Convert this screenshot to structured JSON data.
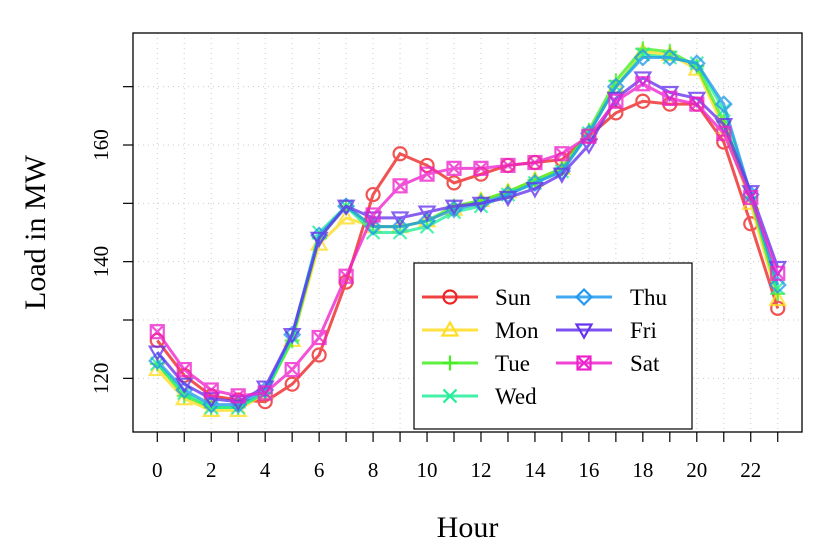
{
  "chart_data": {
    "type": "line",
    "title": "",
    "xlabel": "Hour",
    "ylabel": "Load in MW",
    "x": [
      0,
      1,
      2,
      3,
      4,
      5,
      6,
      7,
      8,
      9,
      10,
      11,
      12,
      13,
      14,
      15,
      16,
      17,
      18,
      19,
      20,
      21,
      22,
      23
    ],
    "x_ticks": [
      "0",
      "2",
      "4",
      "6",
      "8",
      "10",
      "12",
      "14",
      "16",
      "18",
      "20",
      "22"
    ],
    "y_ticks": [
      "120",
      "140",
      "160"
    ],
    "xlim": [
      -0.9,
      23.9
    ],
    "ylim": [
      110.8,
      179.2
    ],
    "grid": true,
    "legend_position": "bottom-right",
    "series": [
      {
        "name": "Sun",
        "marker": "circle",
        "color": "#ee2222",
        "values": [
          126.5,
          120.5,
          117.0,
          116.3,
          116.0,
          119.0,
          124.0,
          136.5,
          151.5,
          158.5,
          156.5,
          153.5,
          155.0,
          156.5,
          157.0,
          157.5,
          161.5,
          165.5,
          167.5,
          167.0,
          167.0,
          160.5,
          146.5,
          132.0
        ]
      },
      {
        "name": "Mon",
        "marker": "triangle-up",
        "color": "#ffdd22",
        "values": [
          121.5,
          116.5,
          114.5,
          114.5,
          117.5,
          126.5,
          143.0,
          147.5,
          146.0,
          146.0,
          147.0,
          149.0,
          150.5,
          152.0,
          154.0,
          156.0,
          162.0,
          170.0,
          176.0,
          175.5,
          173.0,
          163.0,
          150.0,
          133.5
        ]
      },
      {
        "name": "Tue",
        "marker": "plus",
        "color": "#44ee22",
        "values": [
          122.5,
          117.0,
          115.0,
          115.0,
          117.5,
          126.5,
          144.0,
          149.5,
          146.0,
          146.0,
          147.0,
          149.5,
          150.5,
          152.0,
          154.0,
          156.0,
          162.5,
          171.0,
          176.5,
          176.0,
          173.5,
          164.0,
          151.0,
          134.5
        ]
      },
      {
        "name": "Wed",
        "marker": "x",
        "color": "#22ee99",
        "values": [
          122.5,
          117.5,
          115.0,
          115.0,
          117.5,
          127.0,
          145.0,
          149.5,
          145.0,
          145.0,
          146.0,
          148.5,
          149.5,
          151.5,
          153.5,
          155.5,
          162.0,
          170.0,
          175.5,
          175.0,
          174.0,
          166.0,
          151.5,
          135.5
        ]
      },
      {
        "name": "Thu",
        "marker": "diamond",
        "color": "#2299ee",
        "values": [
          123.0,
          118.0,
          115.5,
          115.5,
          118.0,
          127.5,
          144.5,
          149.5,
          146.0,
          146.0,
          147.0,
          149.0,
          150.0,
          151.5,
          153.5,
          155.5,
          162.0,
          170.0,
          175.0,
          175.0,
          174.0,
          167.0,
          151.5,
          136.0
        ]
      },
      {
        "name": "Fri",
        "marker": "triangle-down",
        "color": "#6633ee",
        "values": [
          124.5,
          119.0,
          116.5,
          116.0,
          118.5,
          127.5,
          144.0,
          149.5,
          147.5,
          147.5,
          148.5,
          149.5,
          150.0,
          151.0,
          152.5,
          155.0,
          160.0,
          168.0,
          171.5,
          169.0,
          168.0,
          163.5,
          152.0,
          139.0
        ]
      },
      {
        "name": "Sat",
        "marker": "square-x",
        "color": "#ee22cc",
        "values": [
          128.0,
          121.5,
          118.0,
          117.0,
          117.5,
          121.5,
          127.0,
          137.5,
          148.0,
          153.0,
          155.0,
          156.0,
          156.0,
          156.5,
          157.0,
          158.5,
          161.5,
          167.5,
          170.5,
          168.0,
          167.0,
          162.0,
          151.0,
          138.0
        ]
      }
    ]
  }
}
